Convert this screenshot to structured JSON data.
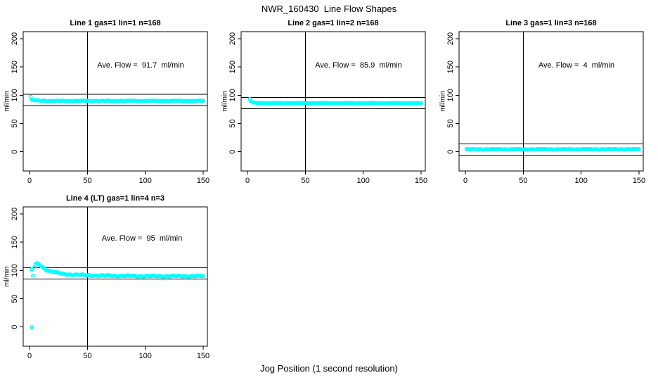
{
  "page": {
    "title": "NWR_160430  Line Flow Shapes",
    "xlabel": "Jog Position (1 second resolution)",
    "background": "#FFFFFF",
    "marker_color": "#00FFFF",
    "line_color": "#000000"
  },
  "chart_data": [
    {
      "type": "scatter",
      "title": "Line 1 gas=1 lin=1 n=168",
      "annotation": "Ave. Flow =  91.7  ml/min",
      "ave_flow_ml_min": 91.7,
      "n": 168,
      "ylabel": "ml/min",
      "x_ticks": [
        0,
        50,
        100,
        150
      ],
      "y_ticks": [
        0,
        50,
        100,
        150,
        200
      ],
      "vline_x": 50,
      "hlines_y": [
        101.7,
        81.7
      ],
      "marker_color": "#00FFFF",
      "x_range": [
        1,
        150
      ],
      "profile_points": [
        [
          1,
          97
        ],
        [
          2,
          92
        ],
        [
          4,
          91
        ],
        [
          8,
          90.5
        ],
        [
          20,
          90
        ],
        [
          150,
          90
        ]
      ],
      "lone_points": [],
      "noise_amp": 0.7,
      "grid": false
    },
    {
      "type": "scatter",
      "title": "Line 2 gas=1 lin=2 n=168",
      "annotation": "Ave. Flow =  85.9  ml/min",
      "ave_flow_ml_min": 85.9,
      "n": 168,
      "ylabel": "ml/min",
      "x_ticks": [
        0,
        50,
        100,
        150
      ],
      "y_ticks": [
        0,
        50,
        100,
        150,
        200
      ],
      "vline_x": 50,
      "hlines_y": [
        95.9,
        75.9
      ],
      "marker_color": "#00FFFF",
      "x_range": [
        2,
        150
      ],
      "profile_points": [
        [
          2,
          93
        ],
        [
          3,
          89
        ],
        [
          5,
          87
        ],
        [
          10,
          86.2
        ],
        [
          150,
          86
        ]
      ],
      "lone_points": [],
      "noise_amp": 0.5,
      "grid": false
    },
    {
      "type": "scatter",
      "title": "Line 3 gas=1 lin=3 n=168",
      "annotation": "Ave. Flow =  4  ml/min",
      "ave_flow_ml_min": 4,
      "n": 168,
      "ylabel": "ml/min",
      "x_ticks": [
        0,
        50,
        100,
        150
      ],
      "y_ticks": [
        0,
        50,
        100,
        150,
        200
      ],
      "vline_x": 50,
      "hlines_y": [
        14,
        -6
      ],
      "marker_color": "#00FFFF",
      "x_range": [
        1,
        150
      ],
      "profile_points": [
        [
          1,
          4.5
        ],
        [
          150,
          4.5
        ]
      ],
      "lone_points": [],
      "noise_amp": 0.5,
      "grid": false
    },
    {
      "type": "scatter",
      "title": "Line 4 (LT) gas=1 lin=4 n=3",
      "annotation": "Ave. Flow =  95  ml/min",
      "ave_flow_ml_min": 95,
      "n": 3,
      "ylabel": "ml/min",
      "x_ticks": [
        0,
        50,
        100,
        150
      ],
      "y_ticks": [
        0,
        50,
        100,
        150,
        200
      ],
      "vline_x": 50,
      "hlines_y": [
        105,
        85
      ],
      "marker_color": "#00FFFF",
      "x_range": [
        4,
        150
      ],
      "profile_points": [
        [
          4,
          105
        ],
        [
          5,
          110
        ],
        [
          6,
          112
        ],
        [
          8,
          111
        ],
        [
          10,
          108
        ],
        [
          12,
          105
        ],
        [
          15,
          101
        ],
        [
          18,
          99
        ],
        [
          22,
          97
        ],
        [
          26,
          95
        ],
        [
          30,
          93.5
        ],
        [
          35,
          93
        ],
        [
          40,
          92.5
        ],
        [
          50,
          91.5
        ],
        [
          60,
          91
        ],
        [
          80,
          90.5
        ],
        [
          100,
          90
        ],
        [
          150,
          90
        ]
      ],
      "lone_points": [
        [
          2,
          0
        ],
        [
          2,
          102
        ],
        [
          3,
          91
        ]
      ],
      "noise_amp": 1.2,
      "grid": false
    }
  ]
}
